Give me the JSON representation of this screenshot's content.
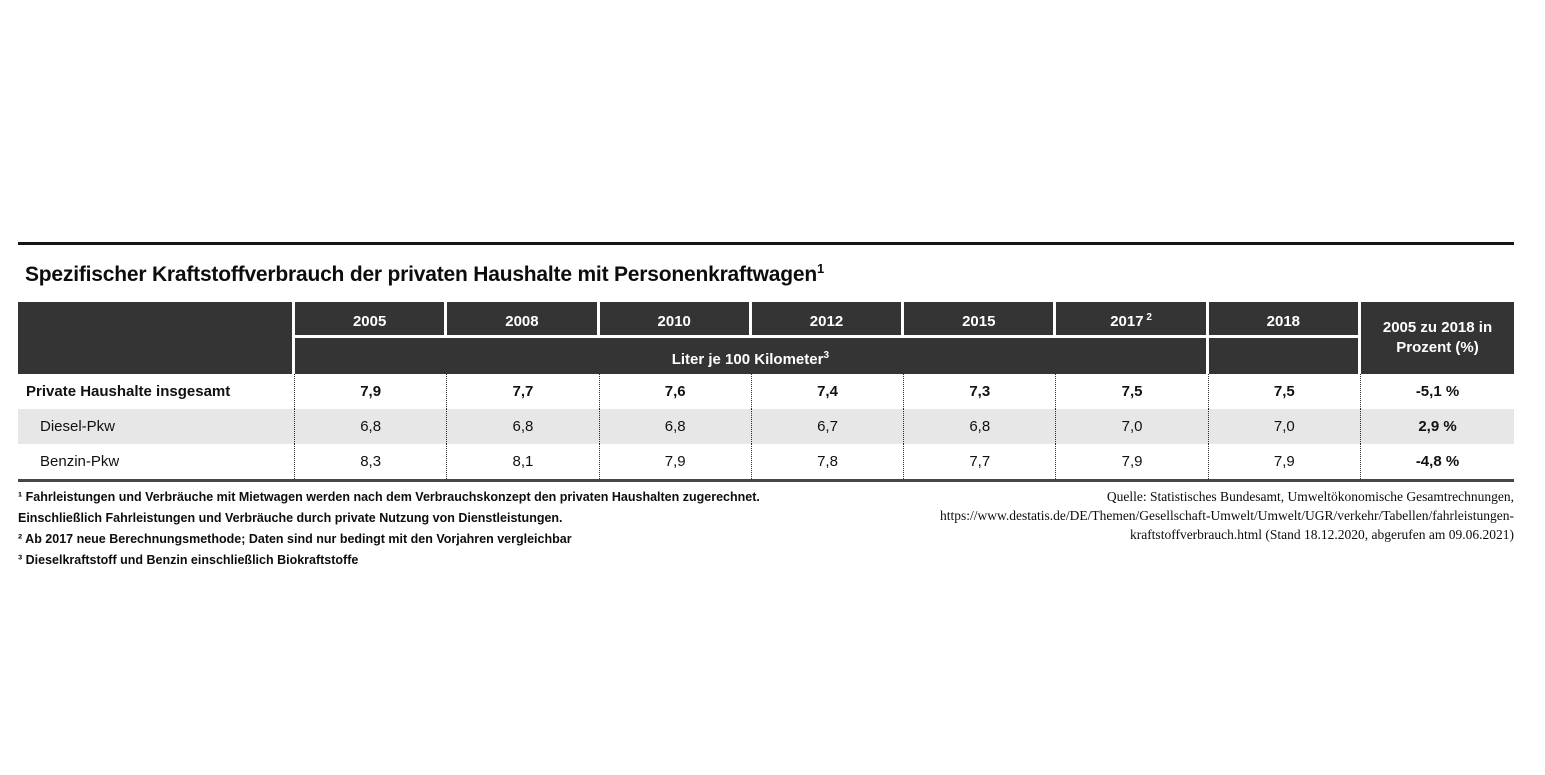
{
  "title": {
    "text": "Spezifischer Kraftstoffverbrauch der privaten Haushalte mit Personenkraftwagen",
    "superscript": "1"
  },
  "table": {
    "year_columns": [
      {
        "label": "2005",
        "sup": ""
      },
      {
        "label": "2008",
        "sup": ""
      },
      {
        "label": "2010",
        "sup": ""
      },
      {
        "label": "2012",
        "sup": ""
      },
      {
        "label": "2015",
        "sup": ""
      },
      {
        "label": "2017",
        "sup": " 2"
      },
      {
        "label": "2018",
        "sup": ""
      }
    ],
    "unit_header": {
      "text": "Liter je 100 Kilometer",
      "superscript": "3"
    },
    "change_header": "2005 zu 2018 in Prozent (%)",
    "rows": [
      {
        "label": "Private Haushalte insgesamt",
        "values": [
          "7,9",
          "7,7",
          "7,6",
          "7,4",
          "7,3",
          "7,5",
          "7,5"
        ],
        "change": "-5,1 %"
      },
      {
        "label": "Diesel-Pkw",
        "values": [
          "6,8",
          "6,8",
          "6,8",
          "6,7",
          "6,8",
          "7,0",
          "7,0"
        ],
        "change": "2,9 %"
      },
      {
        "label": "Benzin-Pkw",
        "values": [
          "8,3",
          "8,1",
          "7,9",
          "7,8",
          "7,7",
          "7,9",
          "7,9"
        ],
        "change": "-4,8 %"
      }
    ]
  },
  "footnotes": [
    "¹ Fahrleistungen und Verbräuche mit Mietwagen werden nach dem Verbrauchskonzept den privaten Haushalten zugerechnet.",
    "Einschließlich Fahrleistungen und Verbräuche durch private Nutzung von Dienstleistungen.",
    "² Ab 2017 neue Berechnungsmethode; Daten sind nur bedingt mit den Vorjahren vergleichbar",
    "³ Dieselkraftstoff und Benzin einschließlich Biokraftstoffe"
  ],
  "source": {
    "lines": [
      "Quelle: Statistisches Bundesamt, Umweltökonomische Gesamtrechnungen,",
      "https://www.destatis.de/DE/Themen/Gesellschaft-Umwelt/Umwelt/UGR/verkehr/Tabellen/fahrleistungen-",
      "kraftstoffverbrauch.html (Stand 18.12.2020, abgerufen am 09.06.2021)"
    ]
  },
  "colors": {
    "header_bg": "#343434",
    "shaded_row_bg": "#e7e7e7",
    "top_rule": "#141414",
    "bottom_border": "#474747",
    "dotted_separator": "#2b2b2b"
  }
}
